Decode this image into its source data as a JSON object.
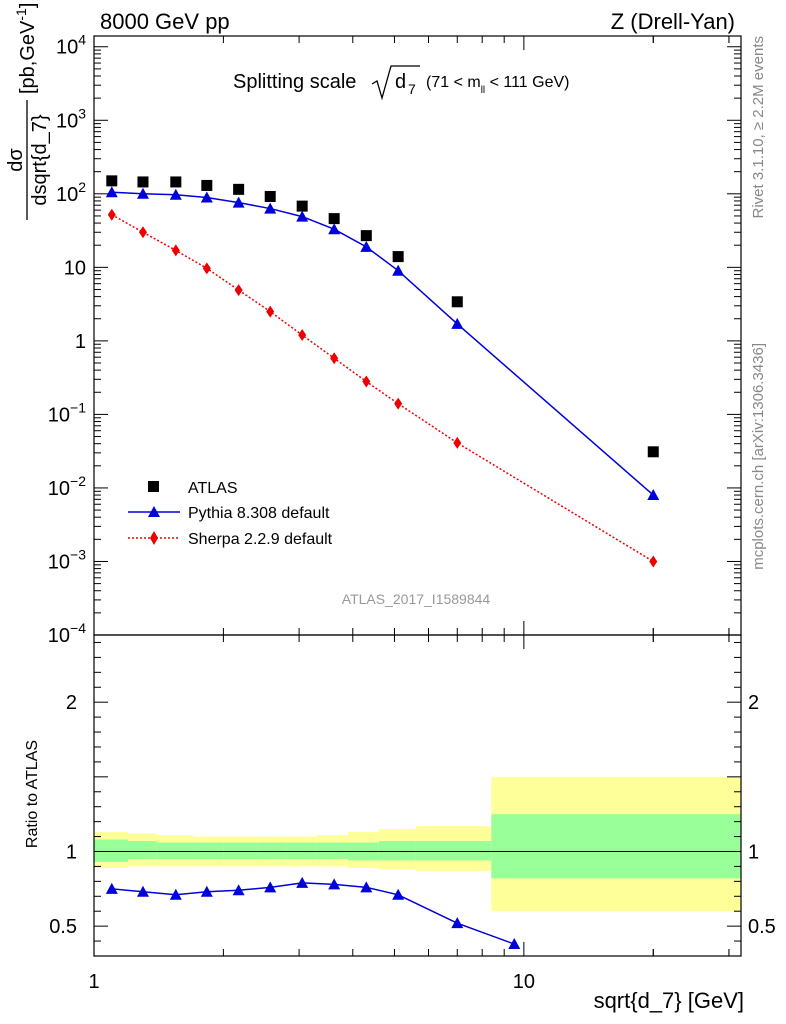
{
  "header": {
    "left": "8000 GeV pp",
    "right": "Z (Drell-Yan)"
  },
  "title": {
    "main": "Splitting scale",
    "symbol": "d",
    "symbol_sub": "7",
    "range_pre": "(71 < m",
    "range_sub": "ll",
    "range_post": " < 111 GeV)"
  },
  "side_labels": {
    "rivet": "Rivet 3.1.10, ≥ 2.2M events",
    "mcplots": "mcplots.cern.ch [arXiv:1306.3436]"
  },
  "watermark": "ATLAS_2017_I1589844",
  "axes": {
    "xlabel": "sqrt{d_7} [GeV]",
    "ylabel_num": "dσ",
    "ylabel_den": "dsqrt{d_7}",
    "ylabel_unit": "[pb,GeV",
    "ylabel_unit_sup": "-1",
    "ratio_ylabel": "Ratio to ATLAS",
    "x_ticks": [
      {
        "v": 1,
        "label": "1"
      },
      {
        "v": 10,
        "label": "10"
      }
    ],
    "main_y_ticks": [
      {
        "v": 10000,
        "base": "10",
        "exp": "4"
      },
      {
        "v": 1000,
        "base": "10",
        "exp": "3"
      },
      {
        "v": 100,
        "base": "10",
        "exp": "2"
      },
      {
        "v": 10,
        "base": "10",
        "exp": ""
      },
      {
        "v": 1,
        "base": "1",
        "exp": ""
      },
      {
        "v": 0.1,
        "base": "10",
        "exp": "−1"
      },
      {
        "v": 0.01,
        "base": "10",
        "exp": "−2"
      },
      {
        "v": 0.001,
        "base": "10",
        "exp": "−3"
      },
      {
        "v": 0.0001,
        "base": "10",
        "exp": "−4"
      }
    ],
    "ratio_y_ticks": [
      {
        "v": 2,
        "label": "2"
      },
      {
        "v": 1,
        "label": "1"
      },
      {
        "v": 0.5,
        "label": "0.5"
      }
    ]
  },
  "legend": {
    "entries": [
      "ATLAS",
      "Pythia 8.308 default",
      "Sherpa 2.2.9 default"
    ]
  },
  "colors": {
    "atlas": "#000000",
    "pythia": "#0000dd",
    "sherpa": "#ee0000",
    "band_inner": "#99ff99",
    "band_outer": "#ffff99"
  },
  "chart_data": {
    "type": "scatter",
    "x_scale": "log",
    "y_scale": "log",
    "xlim": [
      1,
      32
    ],
    "ylim": [
      0.0001,
      14000
    ],
    "ratio_ylim": [
      0.3,
      2.45
    ],
    "legend_position": "bottom-left",
    "x": [
      1.1,
      1.3,
      1.55,
      1.83,
      2.17,
      2.57,
      3.05,
      3.62,
      4.3,
      5.1,
      7.0,
      20.0
    ],
    "series": [
      {
        "name": "ATLAS",
        "marker": "square",
        "values": [
          150,
          145,
          145,
          130,
          115,
          92,
          68,
          46,
          27,
          14,
          3.4,
          0.031
        ]
      },
      {
        "name": "Pythia 8.308 default",
        "marker": "triangle",
        "values": [
          105,
          100,
          97,
          89,
          76,
          63,
          49,
          33,
          19,
          9,
          1.7,
          0.008
        ]
      },
      {
        "name": "Sherpa 2.2.9 default",
        "marker": "diamond",
        "values": [
          52,
          30,
          17,
          9.7,
          4.9,
          2.5,
          1.2,
          0.58,
          0.28,
          0.14,
          0.041,
          0.001
        ]
      }
    ],
    "ratio": {
      "band_edges": [
        1.0,
        1.2,
        1.4,
        1.7,
        2.0,
        2.4,
        2.8,
        3.3,
        3.9,
        4.6,
        5.6,
        8.4,
        32
      ],
      "inner_lo": [
        0.93,
        0.95,
        0.95,
        0.95,
        0.95,
        0.95,
        0.95,
        0.95,
        0.94,
        0.94,
        0.94,
        0.82
      ],
      "inner_hi": [
        1.08,
        1.07,
        1.06,
        1.06,
        1.06,
        1.06,
        1.06,
        1.06,
        1.06,
        1.07,
        1.07,
        1.25
      ],
      "outer_lo": [
        0.89,
        0.9,
        0.9,
        0.9,
        0.9,
        0.9,
        0.9,
        0.9,
        0.89,
        0.88,
        0.87,
        0.6
      ],
      "outer_hi": [
        1.13,
        1.12,
        1.11,
        1.1,
        1.1,
        1.1,
        1.1,
        1.11,
        1.13,
        1.15,
        1.17,
        1.5
      ],
      "pythia_x": [
        1.1,
        1.3,
        1.55,
        1.83,
        2.17,
        2.57,
        3.05,
        3.62,
        4.3,
        5.1,
        7.0,
        9.5
      ],
      "pythia_values": [
        0.75,
        0.73,
        0.71,
        0.73,
        0.74,
        0.76,
        0.79,
        0.78,
        0.76,
        0.71,
        0.52,
        0.38
      ]
    }
  }
}
